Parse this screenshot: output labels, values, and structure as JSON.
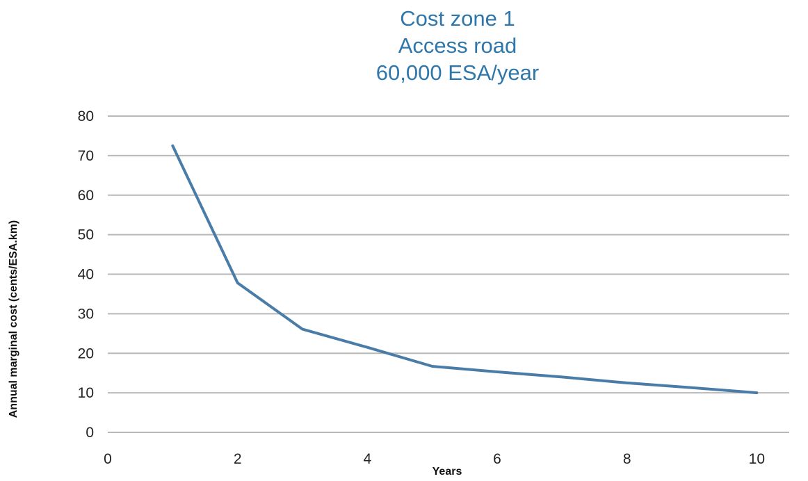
{
  "chart_data": {
    "type": "line",
    "title": [
      "Cost zone 1",
      "Access road",
      "60,000 ESA/year"
    ],
    "xlabel": "Years",
    "ylabel": "Annual marginal cost (cents/ESA.km)",
    "xlim": [
      0,
      10.5
    ],
    "ylim": [
      0,
      80
    ],
    "xticks": [
      0,
      2,
      4,
      6,
      8,
      10
    ],
    "yticks": [
      0,
      10,
      20,
      30,
      40,
      50,
      60,
      70,
      80
    ],
    "grid": "horizontal",
    "series_color": "#4a7ca8",
    "title_color": "#2f77ab",
    "series": [
      {
        "x": [
          1,
          2,
          3,
          4,
          5,
          6,
          7,
          8,
          9,
          10
        ],
        "values": [
          72.5,
          37.8,
          26.1,
          21.5,
          16.7,
          15.3,
          14.0,
          12.5,
          11.3,
          10.0
        ]
      }
    ]
  }
}
